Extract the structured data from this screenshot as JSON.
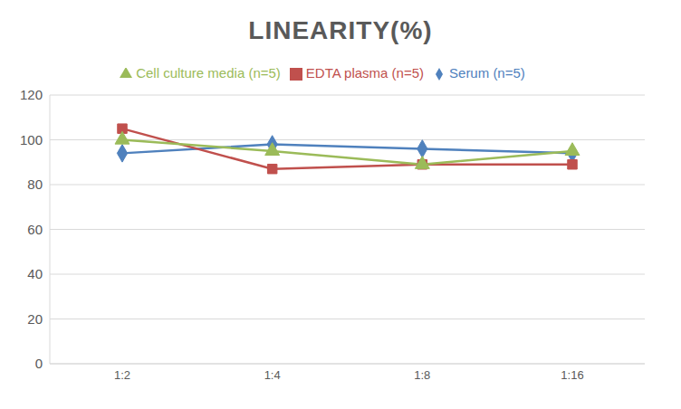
{
  "chart_data": {
    "type": "line",
    "title": "LINEARITY(%)",
    "categories": [
      "1:2",
      "1:4",
      "1:8",
      "1:16"
    ],
    "series": [
      {
        "name": "Serum (n=5)",
        "color": "#4f81bd",
        "marker": "diamond",
        "values": [
          94,
          98,
          96,
          94
        ]
      },
      {
        "name": "EDTA plasma (n=5)",
        "color": "#c0504d",
        "marker": "square",
        "values": [
          105,
          87,
          89,
          89
        ]
      },
      {
        "name": "Cell culture media (n=5)",
        "color": "#9bbb59",
        "marker": "triangle",
        "values": [
          100,
          95,
          89,
          95
        ]
      }
    ],
    "ylim": [
      0,
      120
    ],
    "yticks": [
      0,
      20,
      40,
      60,
      80,
      100,
      120
    ],
    "grid": true,
    "legend": "top"
  }
}
